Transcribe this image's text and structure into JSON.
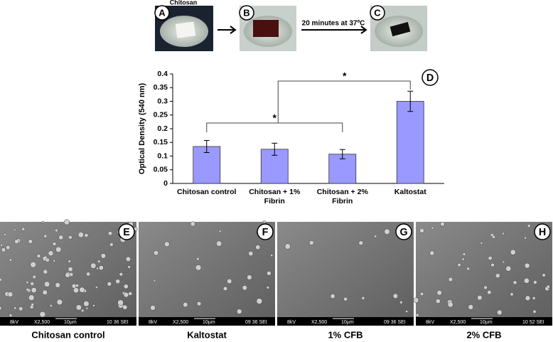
{
  "photos": [
    {
      "letter": "A",
      "caption": "Chitosan"
    },
    {
      "letter": "B"
    },
    {
      "letter": "C"
    }
  ],
  "step_label": "20 minutes at 37ºC",
  "chart_data": {
    "type": "bar",
    "panel_letter": "D",
    "y_label": "Optical Density (540 nm)",
    "categories": [
      "Chitosan control",
      "Chitosan + 1% Fibrin",
      "Chitosan + 2% Fibrin",
      "Kaltostat"
    ],
    "values": [
      0.135,
      0.125,
      0.107,
      0.3
    ],
    "errors": [
      0.022,
      0.022,
      0.017,
      0.037
    ],
    "color": "#9999ff",
    "ylim": [
      0,
      0.4
    ],
    "yticks": [
      0,
      0.05,
      0.1,
      0.15,
      0.2,
      0.25,
      0.3,
      0.35,
      0.4
    ],
    "annotations": [
      "*",
      "*"
    ]
  },
  "sem": [
    {
      "letter": "E",
      "info": [
        "8kV",
        "X2,500",
        "10µm",
        "10 36 SEI"
      ],
      "caption": "Chitosan control"
    },
    {
      "letter": "F",
      "info": [
        "8kV",
        "X2,500",
        "10µm",
        "09 36 SEI"
      ],
      "caption": "Kaltostat"
    },
    {
      "letter": "G",
      "info": [
        "8kV",
        "X2,500",
        "10µm",
        "09 36 SEI"
      ],
      "caption": "1% CFB"
    },
    {
      "letter": "H",
      "info": [
        "8kV",
        "X2,500",
        "10µm",
        "10 52 SEI"
      ],
      "caption": "2% CFB"
    }
  ]
}
